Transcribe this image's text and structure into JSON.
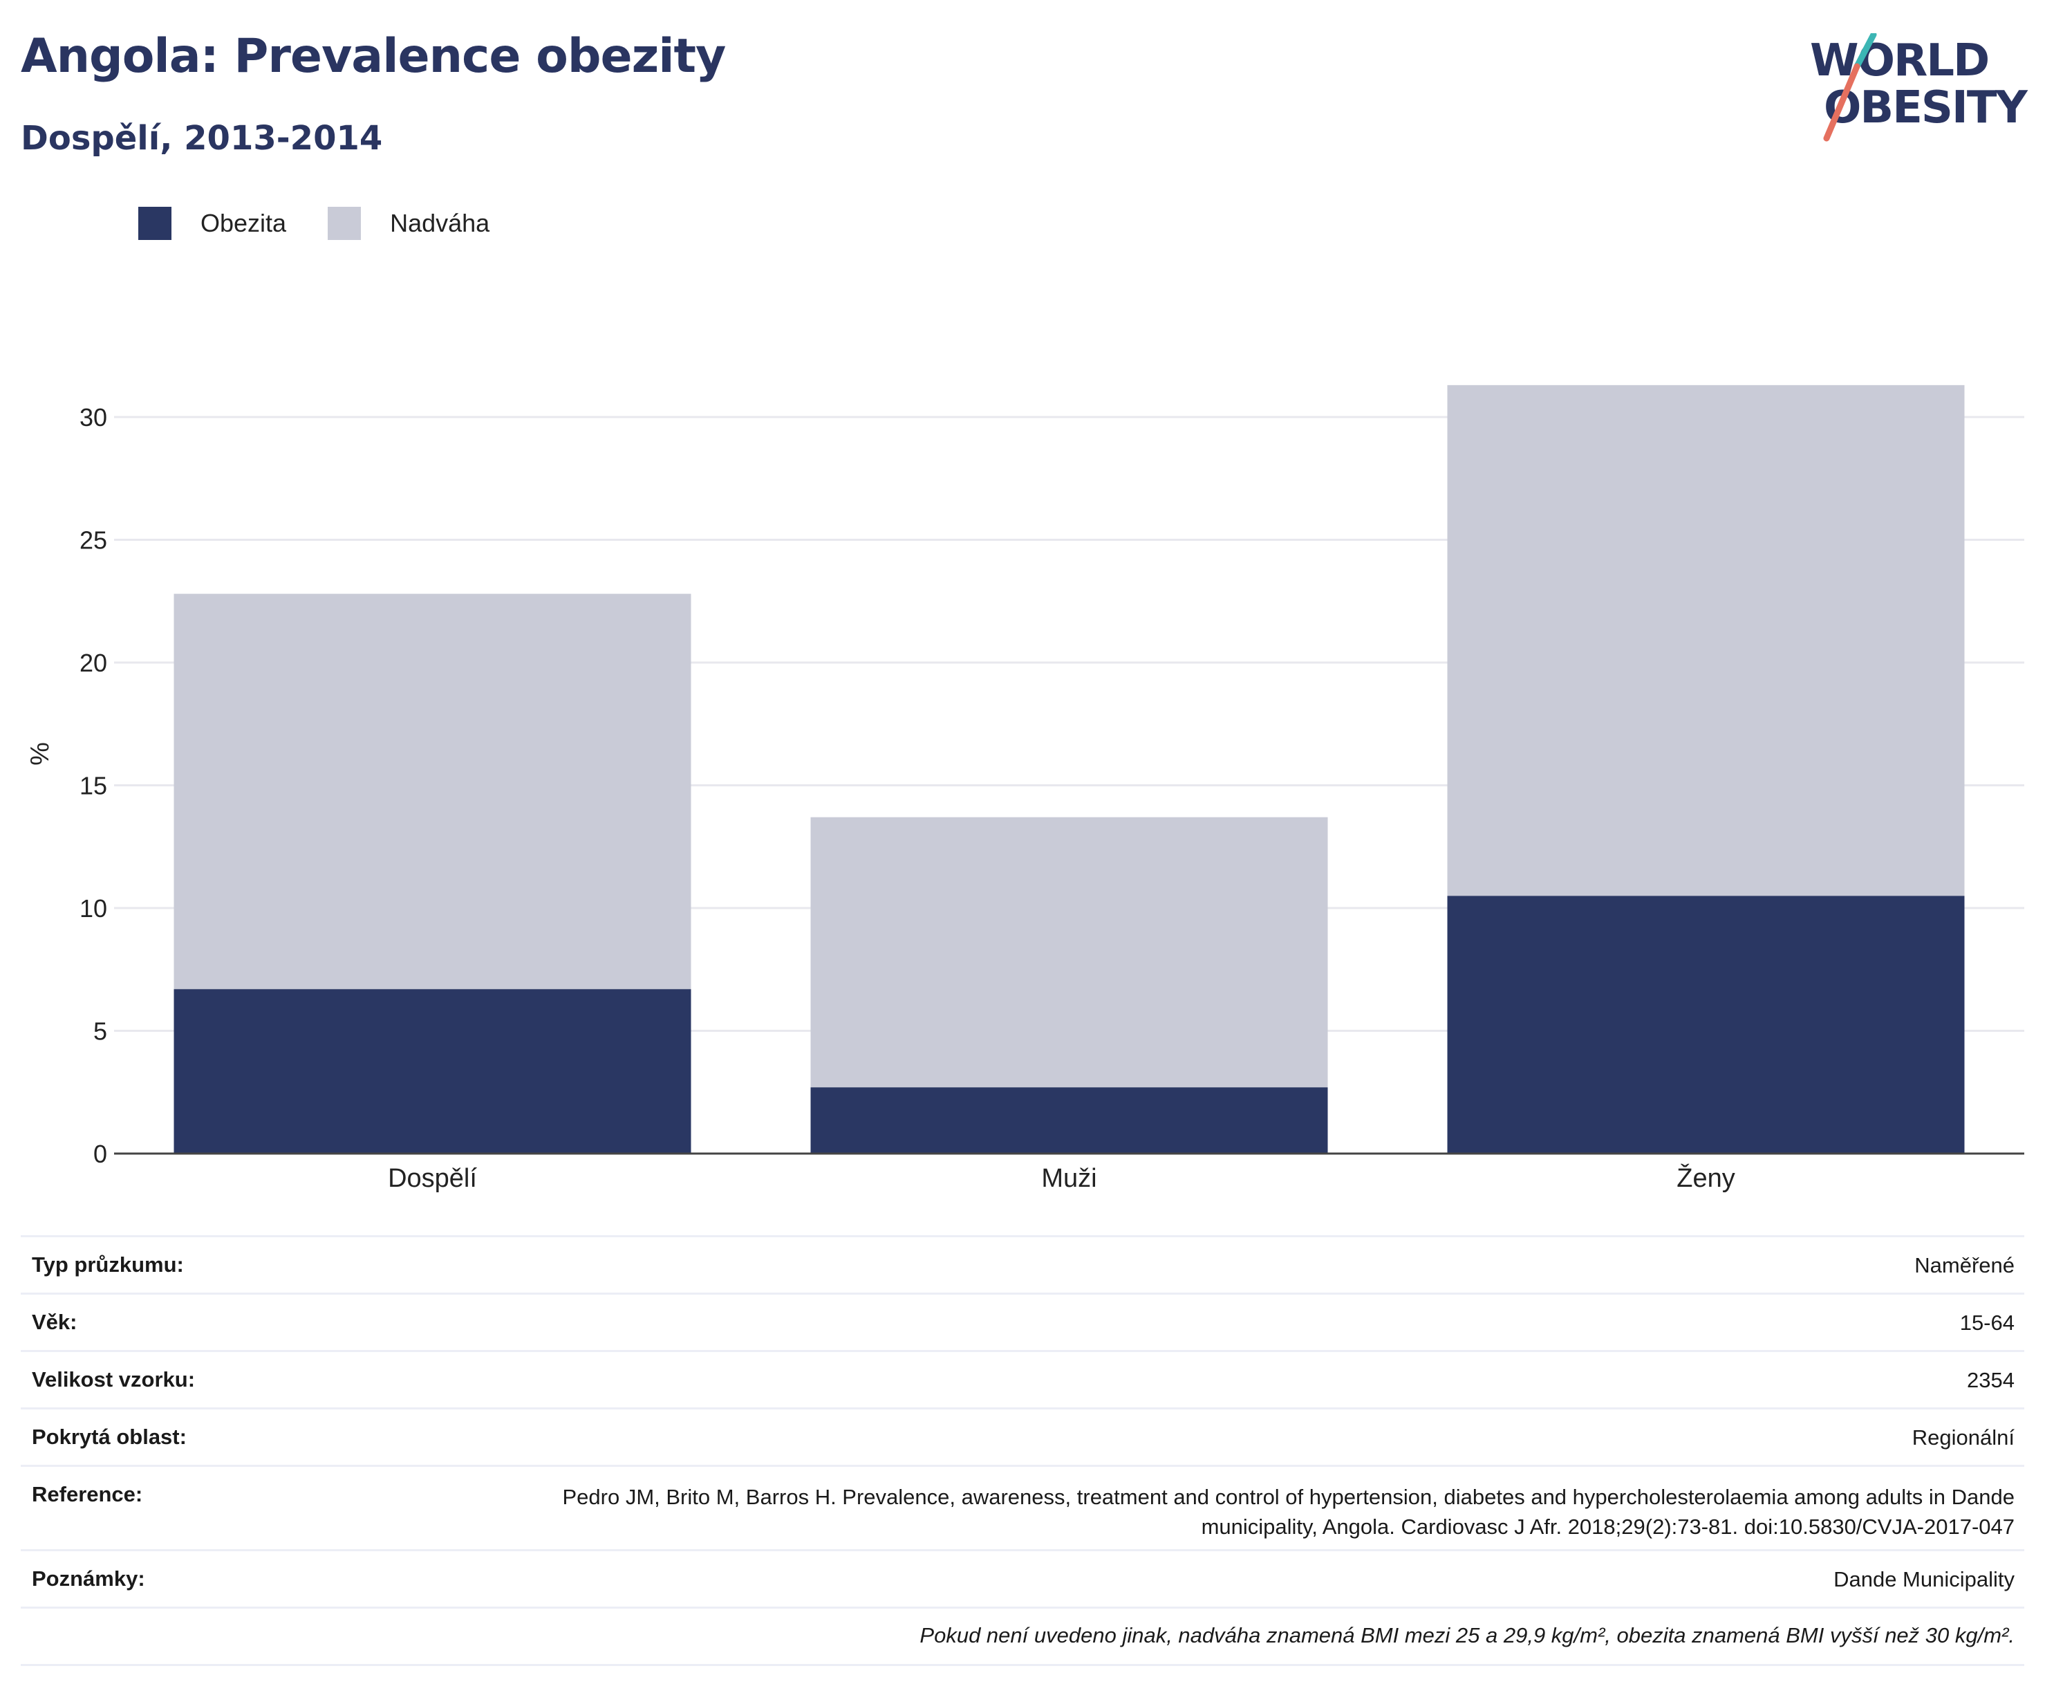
{
  "header": {
    "title": "Angola: Prevalence obezity",
    "subtitle": "Dospělí, 2013-2014",
    "logo_line1": "WORLD",
    "logo_line2": "OBESITY"
  },
  "legend": [
    {
      "label": "Obezita",
      "color": "#2a3763"
    },
    {
      "label": "Nadváha",
      "color": "#c9cbd7"
    }
  ],
  "chart_data": {
    "type": "bar",
    "stacked": true,
    "categories": [
      "Dospělí",
      "Muži",
      "Ženy"
    ],
    "series": [
      {
        "name": "Obezita",
        "values": [
          6.7,
          2.7,
          10.5
        ],
        "color": "#2a3763"
      },
      {
        "name": "Nadváha",
        "values": [
          16.1,
          11.0,
          20.8
        ],
        "color": "#c9cbd7"
      }
    ],
    "ylabel": "%",
    "ylim": [
      0,
      32
    ],
    "yticks": [
      0,
      5,
      10,
      15,
      20,
      25,
      30
    ],
    "grid": true,
    "legend_position": "top-left"
  },
  "info": [
    {
      "key": "Typ průzkumu:",
      "value": "Naměřené"
    },
    {
      "key": "Věk:",
      "value": "15-64"
    },
    {
      "key": "Velikost vzorku:",
      "value": "2354"
    },
    {
      "key": "Pokrytá oblast:",
      "value": "Regionální"
    },
    {
      "key": "Reference:",
      "value": "Pedro JM, Brito M, Barros H. Prevalence, awareness, treatment and control of hypertension, diabetes and hypercholesterolaemia among adults in Dande municipality, Angola. Cardiovasc J Afr. 2018;29(2):73-81. doi:10.5830/CVJA-2017-047"
    },
    {
      "key": "Poznámky:",
      "value": "Dande Municipality"
    }
  ],
  "footnote": "Pokud není uvedeno jinak, nadváha znamená BMI mezi 25 a 29,9 kg/m², obezita znamená BMI vyšší než 30 kg/m²."
}
